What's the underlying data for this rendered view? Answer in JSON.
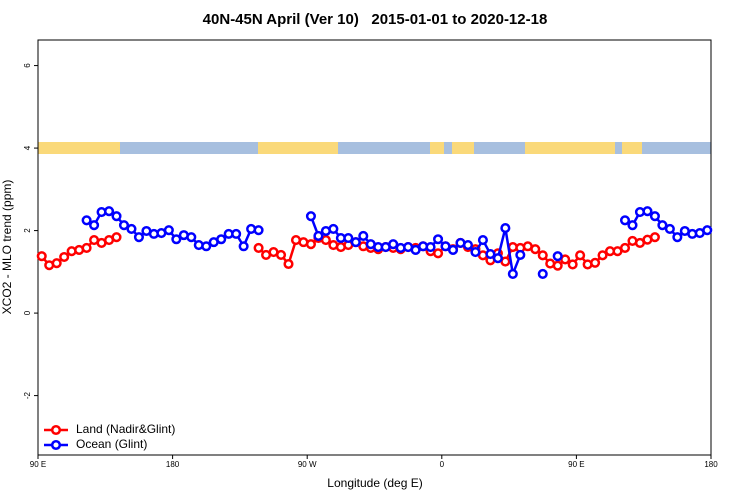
{
  "chart_data": {
    "type": "line",
    "title": "40N-45N April (Ver 10)   2015-01-01 to 2020-12-18",
    "x_label": "Longitude (deg E)",
    "y_label": "XCO2 - MLO trend (ppm)",
    "xlim": [
      90,
      540
    ],
    "xticks": [
      {
        "value": 90,
        "label": "90 E"
      },
      {
        "value": 180,
        "label": "180"
      },
      {
        "value": 270,
        "label": "90 W"
      },
      {
        "value": 360,
        "label": "0"
      },
      {
        "value": 450,
        "label": "90 E"
      },
      {
        "value": 540,
        "label": "180"
      }
    ],
    "ylim": [
      -3.44,
      6.62
    ],
    "yticks": [
      -2,
      0,
      2,
      4,
      6
    ],
    "legend": "bottom-left",
    "x": [
      92.5,
      97.5,
      102.5,
      107.5,
      112.5,
      117.5,
      122.5,
      127.5,
      132.5,
      137.5,
      142.5,
      147.5,
      152.5,
      157.5,
      162.5,
      167.5,
      172.5,
      177.5,
      182.5,
      187.5,
      192.5,
      197.5,
      202.5,
      207.5,
      212.5,
      217.5,
      222.5,
      227.5,
      232.5,
      237.5,
      242.5,
      247.5,
      252.5,
      257.5,
      262.5,
      267.5,
      272.5,
      277.5,
      282.5,
      287.5,
      292.5,
      297.5,
      302.5,
      307.5,
      312.5,
      317.5,
      322.5,
      327.5,
      332.5,
      337.5,
      342.5,
      347.5,
      352.5,
      357.5,
      362.5,
      367.5,
      372.5,
      377.5,
      382.5,
      387.5,
      392.5,
      397.5,
      402.5,
      407.5,
      412.5,
      417.5,
      422.5,
      427.5,
      432.5,
      437.5,
      442.5,
      447.5,
      452.5,
      457.5,
      462.5,
      467.5,
      472.5,
      477.5,
      482.5,
      487.5,
      492.5,
      497.5,
      502.5,
      507.5,
      512.5,
      517.5,
      522.5,
      527.5,
      532.5,
      537.5
    ],
    "series": [
      {
        "name": "Land (Nadir&Glint)",
        "color": "#ff0000",
        "values": [
          1.38,
          1.16,
          1.21,
          1.36,
          1.5,
          1.53,
          1.58,
          1.77,
          1.7,
          1.77,
          1.84,
          null,
          null,
          null,
          null,
          null,
          null,
          null,
          null,
          null,
          null,
          null,
          null,
          null,
          null,
          null,
          null,
          null,
          null,
          1.58,
          1.41,
          1.48,
          1.41,
          1.19,
          1.77,
          1.72,
          1.67,
          1.82,
          1.77,
          1.65,
          1.6,
          1.65,
          1.72,
          1.62,
          1.58,
          1.55,
          1.6,
          1.58,
          1.55,
          1.6,
          1.58,
          1.62,
          1.5,
          1.45,
          1.62,
          1.55,
          1.7,
          1.6,
          1.55,
          1.4,
          1.28,
          1.45,
          1.25,
          1.6,
          1.58,
          1.62,
          1.55,
          1.4,
          1.2,
          1.15,
          1.3,
          1.18,
          1.4,
          1.18,
          1.22,
          1.4,
          1.5,
          1.5,
          1.58,
          1.75,
          1.7,
          1.78,
          1.84,
          null,
          null,
          null,
          null,
          null,
          null,
          null
        ]
      },
      {
        "name": "Ocean (Glint)",
        "color": "#0000ff",
        "values": [
          null,
          null,
          null,
          null,
          null,
          null,
          2.25,
          2.13,
          2.45,
          2.47,
          2.35,
          2.13,
          2.04,
          1.84,
          1.99,
          1.92,
          1.94,
          2.01,
          1.79,
          1.89,
          1.84,
          1.65,
          1.62,
          1.72,
          1.79,
          1.92,
          1.92,
          1.62,
          2.04,
          2.01,
          null,
          null,
          null,
          null,
          null,
          null,
          2.35,
          1.87,
          1.99,
          2.04,
          1.82,
          1.82,
          1.72,
          1.87,
          1.67,
          1.6,
          1.6,
          1.67,
          1.58,
          1.6,
          1.53,
          1.62,
          1.6,
          1.79,
          1.62,
          1.53,
          1.7,
          1.65,
          1.48,
          1.77,
          1.43,
          1.33,
          2.06,
          0.95,
          1.41,
          null,
          null,
          0.95,
          null,
          1.38,
          null,
          null,
          null,
          null,
          null,
          null,
          null,
          null,
          2.25,
          2.13,
          2.45,
          2.47,
          2.35,
          2.13,
          2.04,
          1.84,
          1.99,
          1.92,
          1.94,
          2.01
        ]
      }
    ]
  }
}
